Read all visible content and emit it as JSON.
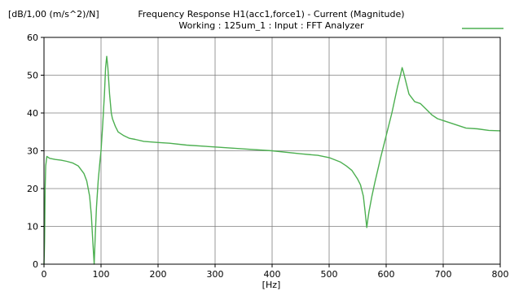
{
  "chart_data": {
    "type": "line",
    "title": "Frequency Response H1(acc1,force1) - Current (Magnitude)",
    "subtitle": "Working : 125um_1 : Input : FFT Analyzer",
    "ylabel": "[dB/1,00 (m/s^2)/N]",
    "xlabel": "[Hz]",
    "xlim": [
      0,
      800
    ],
    "ylim": [
      0,
      60
    ],
    "x_ticks": [
      0,
      100,
      200,
      300,
      400,
      500,
      600,
      700,
      800
    ],
    "y_ticks": [
      0,
      10,
      20,
      30,
      40,
      50,
      60
    ],
    "grid": true,
    "legend": {
      "position": "top-right"
    },
    "colors": {
      "line": "#4caf50",
      "grid": "#7f7f7f",
      "frame": "#000000"
    },
    "series": [
      {
        "color": "#4caf50",
        "x": [
          0,
          0.5,
          1,
          1.5,
          2,
          3,
          5,
          10,
          20,
          30,
          40,
          50,
          60,
          70,
          75,
          80,
          83,
          86,
          88,
          90,
          92,
          95,
          98,
          100,
          103,
          106,
          108,
          110,
          112,
          115,
          118,
          120,
          125,
          130,
          140,
          150,
          160,
          175,
          200,
          220,
          250,
          300,
          350,
          400,
          450,
          480,
          500,
          520,
          530,
          540,
          550,
          555,
          560,
          563,
          566,
          568,
          570,
          575,
          580,
          590,
          600,
          610,
          620,
          625,
          628,
          630,
          635,
          640,
          650,
          660,
          670,
          680,
          690,
          700,
          720,
          740,
          760,
          780,
          800
        ],
        "y": [
          0,
          3,
          6,
          12,
          20,
          26,
          28.5,
          28,
          27.7,
          27.5,
          27.2,
          26.8,
          26,
          24,
          22,
          18,
          13,
          5,
          0,
          8,
          15,
          22,
          27,
          30,
          37,
          45,
          52,
          55,
          52,
          45,
          40,
          38.5,
          36.5,
          35,
          34,
          33.3,
          33,
          32.5,
          32.2,
          32,
          31.5,
          31,
          30.5,
          30,
          29.2,
          28.8,
          28.2,
          27,
          26,
          24.8,
          22.5,
          21,
          18,
          14,
          9.7,
          12,
          14,
          18,
          21.5,
          28,
          34,
          40,
          47,
          50,
          52,
          51,
          48,
          45,
          43,
          42.5,
          41,
          39.5,
          38.5,
          38,
          37,
          36,
          35.8,
          35.4,
          35.3
        ]
      }
    ]
  }
}
